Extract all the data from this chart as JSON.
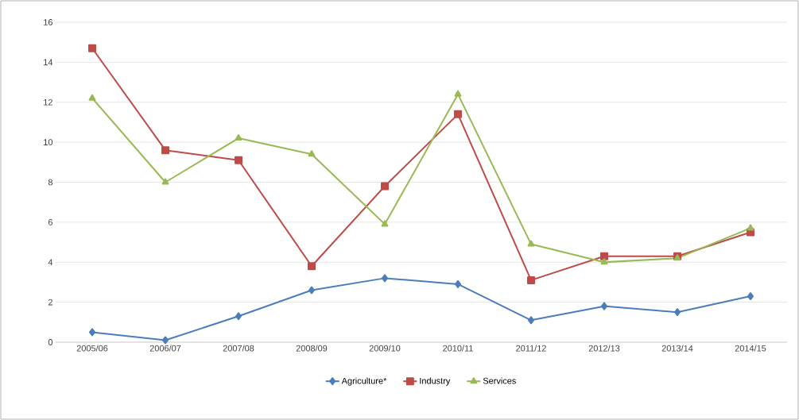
{
  "chart_data": {
    "type": "line",
    "categories": [
      "2005/06",
      "2006/07",
      "2007/08",
      "2008/09",
      "2009/10",
      "2010/11",
      "2011/12",
      "2012/13",
      "2013/14",
      "2014/15"
    ],
    "series": [
      {
        "name": "Agriculture*",
        "color": "#4a7ebb",
        "marker": "diamond",
        "values": [
          0.5,
          0.1,
          1.3,
          2.6,
          3.2,
          2.9,
          1.1,
          1.8,
          1.5,
          2.3
        ]
      },
      {
        "name": "Industry",
        "color": "#be4b48",
        "marker": "square",
        "values": [
          14.7,
          9.6,
          9.1,
          3.8,
          7.8,
          11.4,
          3.1,
          4.3,
          4.3,
          5.5
        ]
      },
      {
        "name": "Services",
        "color": "#98b954",
        "marker": "triangle",
        "values": [
          12.2,
          8.0,
          10.2,
          9.4,
          5.9,
          12.4,
          4.9,
          4.0,
          4.2,
          5.7
        ]
      }
    ],
    "ylim": [
      0,
      16
    ],
    "yticks": [
      0,
      2,
      4,
      6,
      8,
      10,
      12,
      14,
      16
    ],
    "grid": "y",
    "legend": "bottom",
    "line_style": "solid"
  }
}
